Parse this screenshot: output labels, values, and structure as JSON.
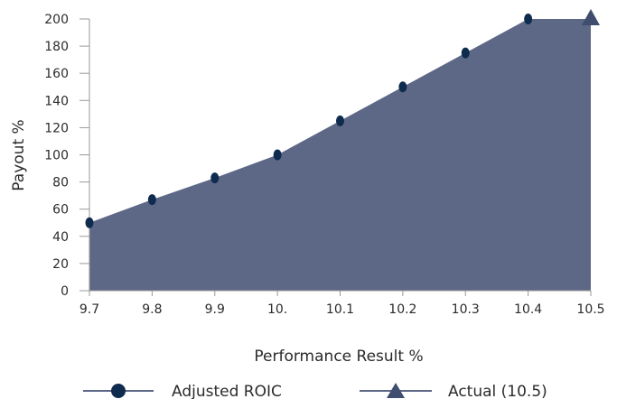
{
  "chart_data": {
    "type": "area",
    "title": "",
    "xlabel": "Performance Result %",
    "ylabel": "Payout %",
    "x_tick_labels": [
      "9.7",
      "9.8",
      "9.9",
      "10.",
      "10.1",
      "10.2",
      "10.3",
      "10.4",
      "10.5"
    ],
    "x_values": [
      9.7,
      9.8,
      9.9,
      10.0,
      10.1,
      10.2,
      10.3,
      10.4,
      10.5
    ],
    "y_ticks": [
      0,
      20,
      40,
      60,
      80,
      100,
      120,
      140,
      160,
      180,
      200
    ],
    "xlim": [
      9.7,
      10.5
    ],
    "ylim": [
      0,
      200
    ],
    "grid": false,
    "legend_position": "bottom",
    "series": [
      {
        "name": "Adjusted ROIC",
        "marker": "circle",
        "points": [
          {
            "x": 9.7,
            "y": 50
          },
          {
            "x": 9.8,
            "y": 67
          },
          {
            "x": 9.9,
            "y": 83
          },
          {
            "x": 10.0,
            "y": 100
          },
          {
            "x": 10.1,
            "y": 125
          },
          {
            "x": 10.2,
            "y": 150
          },
          {
            "x": 10.3,
            "y": 175
          },
          {
            "x": 10.4,
            "y": 200
          }
        ]
      },
      {
        "name": "Actual (10.5)",
        "marker": "triangle",
        "points": [
          {
            "x": 10.5,
            "y": 200
          }
        ]
      }
    ],
    "colors": {
      "area_fill": "#5d6886",
      "marker": "#0f2b4d",
      "triangle": "#3f4d6e",
      "axis": "#999999",
      "legend_line": "#5d6886"
    }
  }
}
